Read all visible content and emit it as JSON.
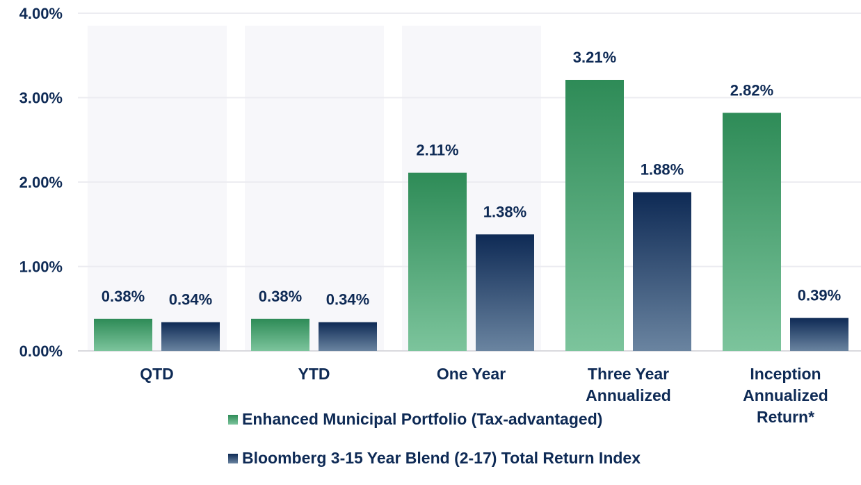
{
  "chart_data": {
    "type": "bar",
    "title": "",
    "xlabel": "",
    "ylabel": "",
    "ylim": [
      0,
      4
    ],
    "y_ticks": [
      "0.00%",
      "1.00%",
      "2.00%",
      "3.00%",
      "4.00%"
    ],
    "y_tick_values": [
      0,
      1,
      2,
      3,
      4
    ],
    "grid": true,
    "legend_position": "bottom",
    "categories": [
      [
        "QTD"
      ],
      [
        "YTD"
      ],
      [
        "One Year"
      ],
      [
        "Three Year",
        "Annualized"
      ],
      [
        "Inception",
        "Annualized",
        "Return*"
      ]
    ],
    "shaded_categories": [
      0,
      1,
      2
    ],
    "series": [
      {
        "name": "Enhanced Municipal Portfolio (Tax-advantaged)",
        "values": [
          0.38,
          0.38,
          2.11,
          3.21,
          2.82
        ],
        "labels": [
          "0.38%",
          "0.38%",
          "2.11%",
          "3.21%",
          "2.82%"
        ],
        "color_top": "#2e8b57",
        "color_bottom": "#7cc49c"
      },
      {
        "name": "Bloomberg 3-15 Year Blend (2-17) Total Return Index",
        "values": [
          0.34,
          0.34,
          1.38,
          1.88,
          0.39
        ],
        "labels": [
          "0.34%",
          "0.34%",
          "1.38%",
          "1.88%",
          "0.39%"
        ],
        "color_top": "#0e2a55",
        "color_bottom": "#6a84a0"
      }
    ]
  },
  "legend": {
    "items": [
      "Enhanced Municipal Portfolio (Tax-advantaged)",
      "Bloomberg 3-15 Year Blend (2-17) Total Return Index"
    ]
  },
  "colors": {
    "text": "#0e2a55",
    "grid": "#ececf1",
    "shade": "#f7f7fa"
  }
}
